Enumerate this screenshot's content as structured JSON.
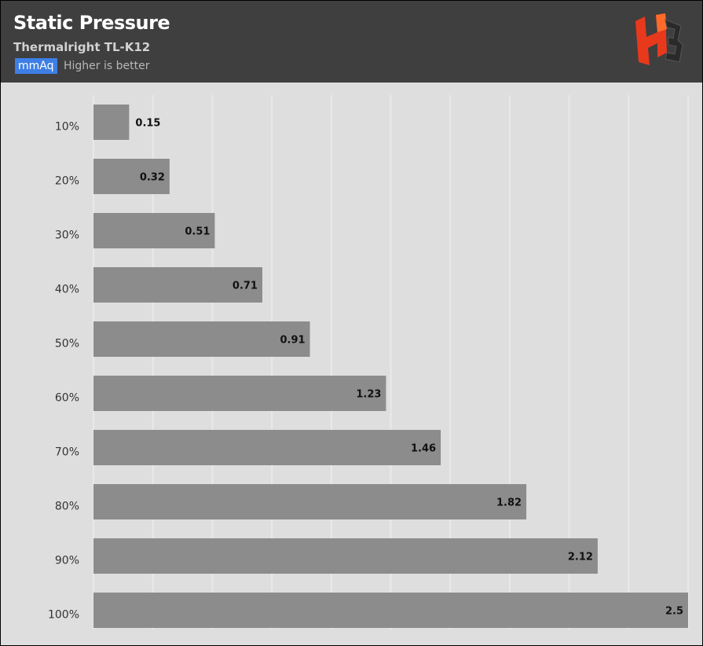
{
  "header": {
    "title": "Static Pressure",
    "subtitle": "Thermalright TL-K12",
    "unit": "mmAq",
    "note": "Higher is better",
    "logo_icon": "hb-logo-icon"
  },
  "colors": {
    "header_bg": "#3f3f3f",
    "plot_bg": "#dedede",
    "bar": "#8c8c8c",
    "unit_badge": "#3d7fe6",
    "logo_red": "#e8391d"
  },
  "chart_data": {
    "type": "bar",
    "orientation": "horizontal",
    "categories": [
      "10%",
      "20%",
      "30%",
      "40%",
      "50%",
      "60%",
      "70%",
      "80%",
      "90%",
      "100%"
    ],
    "values": [
      0.15,
      0.32,
      0.51,
      0.71,
      0.91,
      1.23,
      1.46,
      1.82,
      2.12,
      2.5
    ],
    "value_labels": [
      "0.15",
      "0.32",
      "0.51",
      "0.71",
      "0.91",
      "1.23",
      "1.46",
      "1.82",
      "2.12",
      "2.5"
    ],
    "title": "Static Pressure",
    "subtitle": "Thermalright TL-K12",
    "unit": "mmAq",
    "xlim": [
      0,
      2.5
    ],
    "grid": true,
    "legend": "none"
  }
}
